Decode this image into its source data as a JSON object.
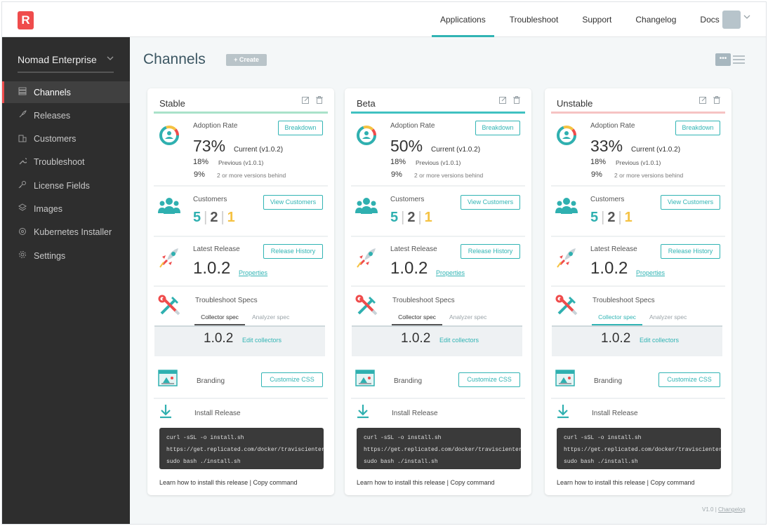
{
  "header": {
    "logo_letter": "R",
    "nav": [
      "Applications",
      "Troubleshoot",
      "Support",
      "Changelog",
      "Docs"
    ]
  },
  "sidebar": {
    "app_name": "Nomad Enterprise",
    "items": [
      {
        "label": "Channels",
        "icon": "stack-icon"
      },
      {
        "label": "Releases",
        "icon": "rocket-icon"
      },
      {
        "label": "Customers",
        "icon": "building-icon"
      },
      {
        "label": "Troubleshoot",
        "icon": "wrench-icon"
      },
      {
        "label": "License Fields",
        "icon": "key-icon"
      },
      {
        "label": "Images",
        "icon": "layers-icon"
      },
      {
        "label": "Kubernetes Installer",
        "icon": "helm-icon"
      },
      {
        "label": "Settings",
        "icon": "gear-icon"
      }
    ]
  },
  "main": {
    "title": "Channels",
    "create_label": "Create",
    "view_toggle_card": "•••"
  },
  "labels": {
    "adoption": "Adoption Rate",
    "breakdown": "Breakdown",
    "customers": "Customers",
    "view_customers": "View Customers",
    "latest_release": "Latest Release",
    "release_history": "Release History",
    "properties": "Properties",
    "troubleshoot_specs": "Troubleshoot Specs",
    "collector_spec": "Collector spec",
    "analyzer_spec": "Analyzer spec",
    "edit_collectors": "Edit collectors",
    "branding": "Branding",
    "customize_css": "Customize CSS",
    "install_release": "Install Release",
    "learn_how": "Learn how to install this release",
    "footer_sep": "|",
    "copy_command": "Copy command",
    "cur_prefix": "Current",
    "prev_prefix": "Previous",
    "behind": "2 or more versions behind",
    "code_line1": "curl -sSL -o install.sh",
    "code_line2": "https://get.replicated.com/docker/traviscienterprise",
    "code_line3": "sudo bash ./install.sh"
  },
  "cards": [
    {
      "name": "Stable",
      "accent": "#a9e2c9",
      "adoption_pct": "73%",
      "current_version": "(v1.0.2)",
      "previous_pct": "18%",
      "previous_version": "(v1.0.1)",
      "behind_pct": "9%",
      "customers": [
        "5",
        "2",
        "1"
      ],
      "latest_release": "1.0.2",
      "spec_version": "1.0.2",
      "active_spec_tab": "collector"
    },
    {
      "name": "Beta",
      "accent": "#40c1c1",
      "adoption_pct": "50%",
      "current_version": "(v1.0.2)",
      "previous_pct": "18%",
      "previous_version": "(v1.0.1)",
      "behind_pct": "9%",
      "customers": [
        "5",
        "2",
        "1"
      ],
      "latest_release": "1.0.2",
      "spec_version": "1.0.2",
      "active_spec_tab": "collector"
    },
    {
      "name": "Unstable",
      "accent": "#f6c3c3",
      "adoption_pct": "33%",
      "current_version": "(v1.0.2)",
      "previous_pct": "18%",
      "previous_version": "(v1.0.1)",
      "behind_pct": "9%",
      "customers": [
        "5",
        "2",
        "1"
      ],
      "latest_release": "1.0.2",
      "spec_version": "1.0.2",
      "active_spec_tab": "collector-teal"
    }
  ],
  "customer_colors": [
    "#2fb0b0",
    "#555555",
    "#f5c242"
  ],
  "footer": {
    "version": "V1.0",
    "sep": "|",
    "changelog": "Changelog"
  }
}
